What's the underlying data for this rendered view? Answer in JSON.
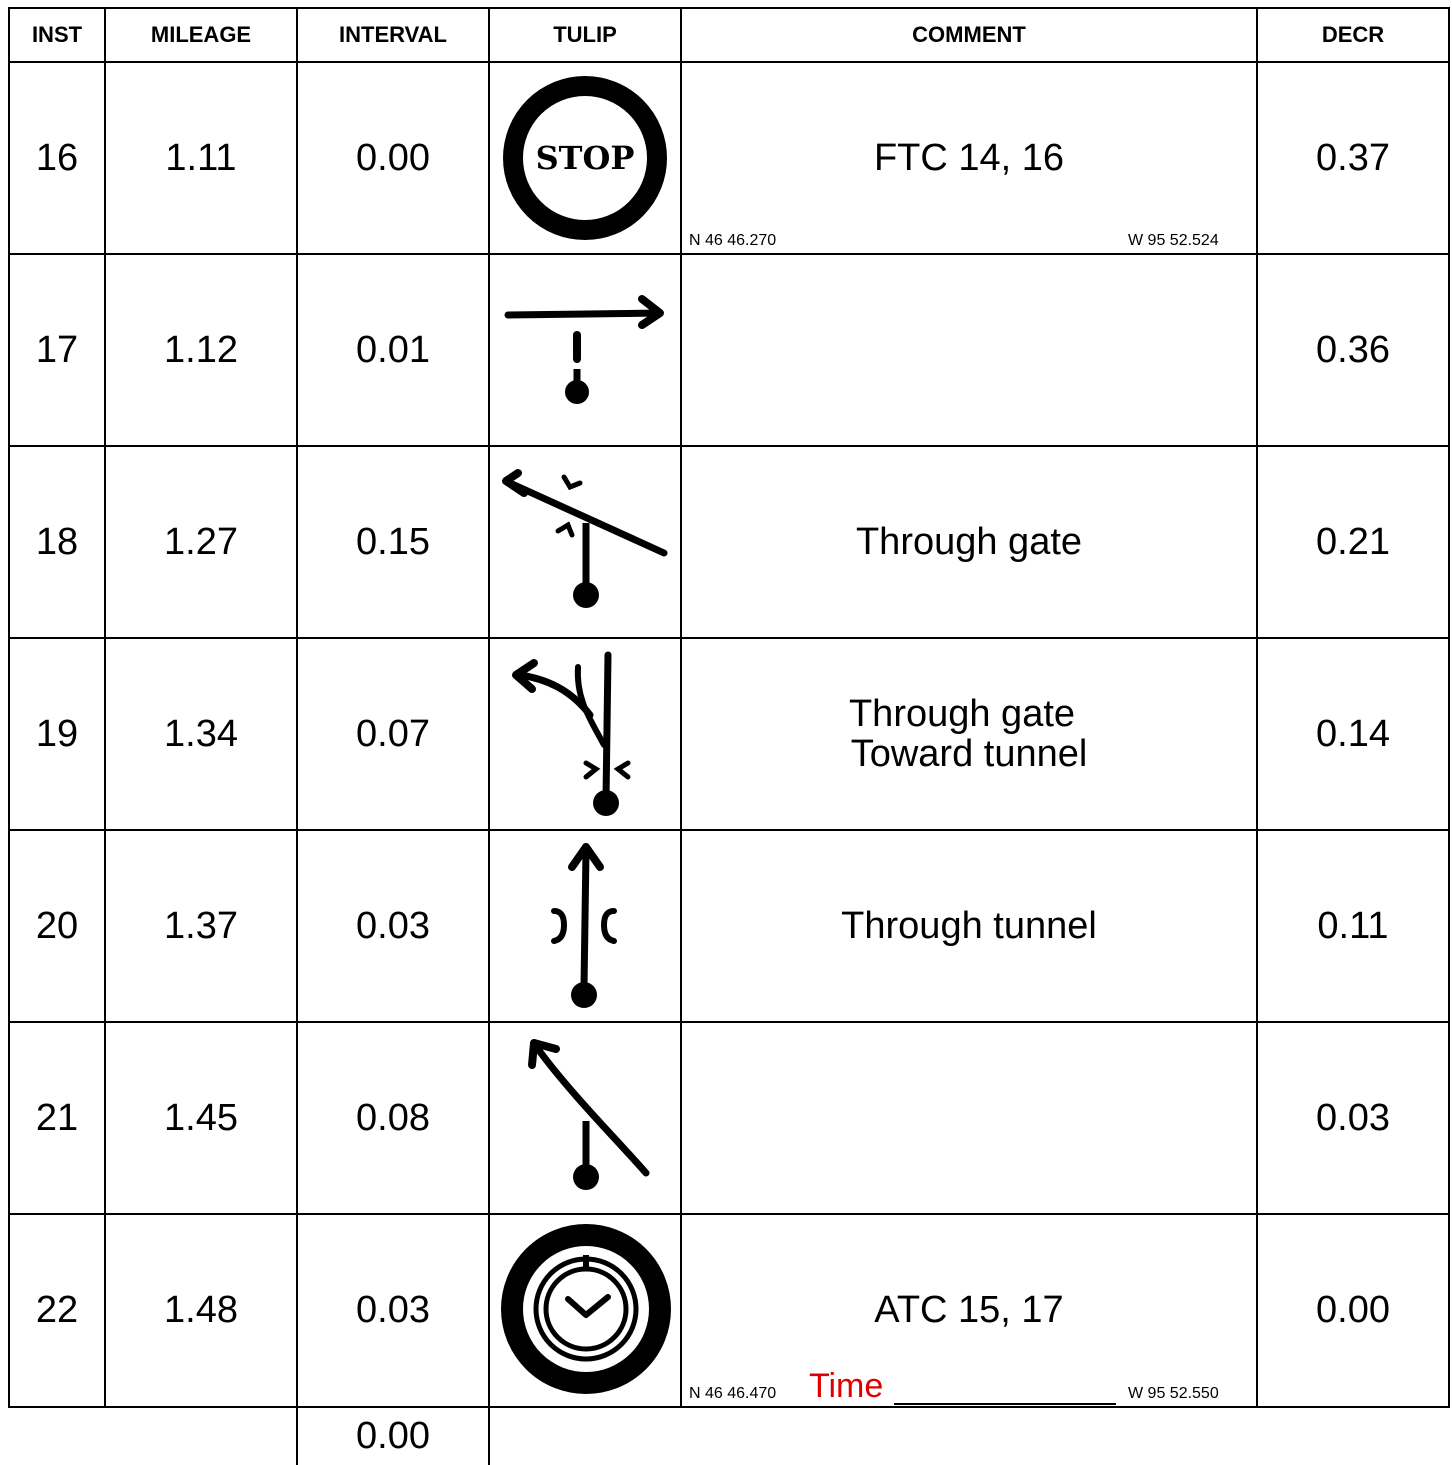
{
  "headers": {
    "inst": "INST",
    "mileage": "MILEAGE",
    "interval": "INTERVAL",
    "tulip": "TULIP",
    "comment": "COMMENT",
    "decr": "DECR"
  },
  "rows": [
    {
      "inst": "16",
      "mileage": "1.11",
      "interval": "0.00",
      "tulip_icon": "stop-sign-icon",
      "tulip_text": "STOP",
      "comment_lines": [
        "FTC 14, 16"
      ],
      "coord_n": "N 46 46.270",
      "coord_w": "W 95 52.524",
      "decr": "0.37"
    },
    {
      "inst": "17",
      "mileage": "1.12",
      "interval": "0.01",
      "tulip_icon": "turn-right-t-intersection-icon",
      "comment_lines": [],
      "decr": "0.36"
    },
    {
      "inst": "18",
      "mileage": "1.27",
      "interval": "0.15",
      "tulip_icon": "bear-left-through-gate-icon",
      "comment_lines": [
        "Through gate"
      ],
      "decr": "0.21"
    },
    {
      "inst": "19",
      "mileage": "1.34",
      "interval": "0.07",
      "tulip_icon": "fork-left-through-gate-icon",
      "comment_lines": [
        "Through gate",
        "Toward tunnel"
      ],
      "decr": "0.14"
    },
    {
      "inst": "20",
      "mileage": "1.37",
      "interval": "0.03",
      "tulip_icon": "straight-through-tunnel-icon",
      "comment_lines": [
        "Through tunnel"
      ],
      "decr": "0.11"
    },
    {
      "inst": "21",
      "mileage": "1.45",
      "interval": "0.08",
      "tulip_icon": "bear-left-icon",
      "comment_lines": [],
      "decr": "0.03"
    },
    {
      "inst": "22",
      "mileage": "1.48",
      "interval": "0.03",
      "tulip_icon": "time-control-clock-icon",
      "comment_lines": [
        "ATC 15, 17"
      ],
      "coord_n": "N 46 46.470",
      "time_label": "Time",
      "coord_w": "W 95 52.550",
      "decr": "0.00"
    }
  ],
  "footer": {
    "interval": "0.00"
  },
  "colors": {
    "time_label": "#e00000",
    "ink": "#000000"
  }
}
